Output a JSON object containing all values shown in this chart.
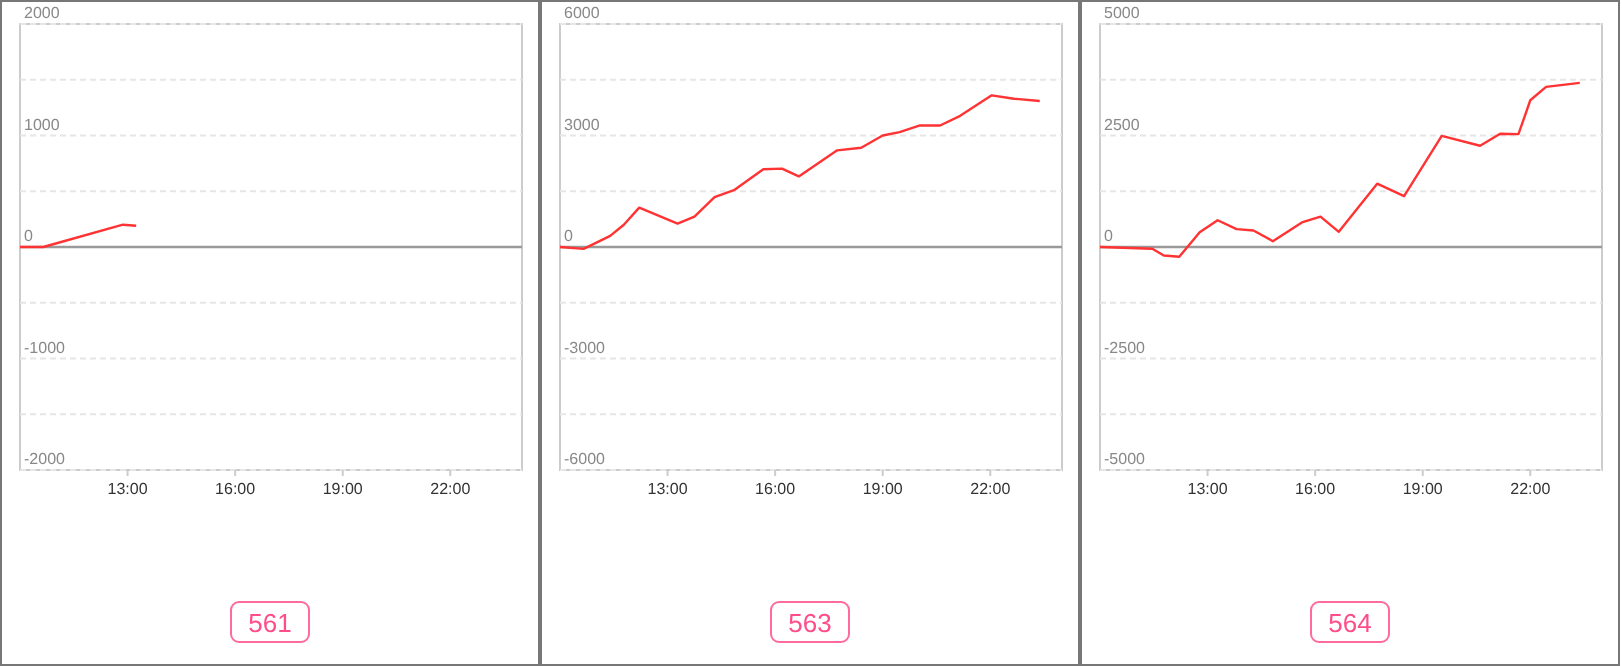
{
  "chart_data": [
    {
      "type": "line",
      "title": "561",
      "xlim": [
        10,
        24
      ],
      "xticks": [
        {
          "value": 13,
          "label": "13:00"
        },
        {
          "value": 16,
          "label": "16:00"
        },
        {
          "value": 19,
          "label": "19:00"
        },
        {
          "value": 22,
          "label": "22:00"
        }
      ],
      "ylim": [
        -2000,
        2000
      ],
      "yticks": [
        2000,
        {
          "value": 1500,
          "label": null
        },
        1000,
        {
          "value": 500,
          "label": null
        },
        0,
        {
          "value": -500,
          "label": null
        },
        -1000,
        {
          "value": -1500,
          "label": null
        },
        -2000
      ],
      "grid": "y",
      "series": [
        {
          "color": "#ff3333",
          "x": [
            10,
            10.65,
            12.87,
            13.24
          ],
          "values": [
            0,
            0,
            200,
            190
          ]
        }
      ]
    },
    {
      "type": "line",
      "title": "563",
      "xlim": [
        10,
        24
      ],
      "xticks": [
        {
          "value": 13,
          "label": "13:00"
        },
        {
          "value": 16,
          "label": "16:00"
        },
        {
          "value": 19,
          "label": "19:00"
        },
        {
          "value": 22,
          "label": "22:00"
        }
      ],
      "ylim": [
        -6000,
        6000
      ],
      "yticks": [
        6000,
        {
          "value": 4500,
          "label": null
        },
        3000,
        {
          "value": 1500,
          "label": null
        },
        0,
        {
          "value": -1500,
          "label": null
        },
        -3000,
        {
          "value": -4500,
          "label": null
        },
        -6000
      ],
      "grid": "y",
      "series": [
        {
          "color": "#ff3333",
          "x": [
            10,
            10.66,
            11.4,
            11.78,
            12.21,
            13.28,
            13.75,
            14.31,
            14.87,
            15.67,
            16.19,
            16.66,
            17.73,
            18.4,
            19,
            19.47,
            20.04,
            20.6,
            21.16,
            22.04,
            22.66,
            23.38
          ],
          "values": [
            0,
            -50,
            300,
            600,
            1060,
            630,
            820,
            1340,
            1540,
            2090,
            2110,
            1900,
            2600,
            2670,
            3000,
            3090,
            3270,
            3270,
            3530,
            4080,
            3990,
            3930
          ]
        }
      ]
    },
    {
      "type": "line",
      "title": "564",
      "xlim": [
        10,
        24
      ],
      "xticks": [
        {
          "value": 13,
          "label": "13:00"
        },
        {
          "value": 16,
          "label": "16:00"
        },
        {
          "value": 19,
          "label": "19:00"
        },
        {
          "value": 22,
          "label": "22:00"
        }
      ],
      "ylim": [
        -5000,
        5000
      ],
      "yticks": [
        5000,
        {
          "value": 3750,
          "label": null
        },
        2500,
        {
          "value": 1250,
          "label": null
        },
        0,
        {
          "value": -1250,
          "label": null
        },
        -2500,
        {
          "value": -3750,
          "label": null
        },
        -5000
      ],
      "grid": "y",
      "series": [
        {
          "color": "#ff3333",
          "x": [
            10,
            11.46,
            11.78,
            12.21,
            12.78,
            13.28,
            13.81,
            14.28,
            14.82,
            15.63,
            16.15,
            16.66,
            17.73,
            18.48,
            19.53,
            20.6,
            21.16,
            21.67,
            22,
            22.44,
            23.38
          ],
          "values": [
            0,
            -40,
            -190,
            -220,
            330,
            600,
            400,
            370,
            130,
            550,
            680,
            340,
            1420,
            1140,
            2490,
            2270,
            2540,
            2530,
            3290,
            3590,
            3680
          ]
        }
      ]
    }
  ]
}
